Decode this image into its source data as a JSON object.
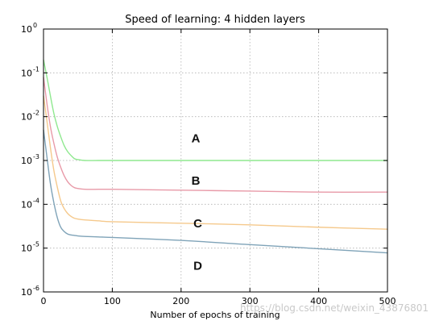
{
  "chart_data": {
    "type": "line",
    "title": "Speed of learning: 4 hidden layers",
    "xlabel": "Number of epochs of training",
    "ylabel": "",
    "xlim": [
      0,
      500
    ],
    "ylim": [
      1e-06,
      1
    ],
    "yscale": "log",
    "grid": true,
    "x_ticks": [
      0,
      100,
      200,
      300,
      400,
      500
    ],
    "y_ticks": [
      {
        "value": 1e-06,
        "base": "10",
        "exp": "-6"
      },
      {
        "value": 1e-05,
        "base": "10",
        "exp": "-5"
      },
      {
        "value": 0.0001,
        "base": "10",
        "exp": "-4"
      },
      {
        "value": 0.001,
        "base": "10",
        "exp": "-3"
      },
      {
        "value": 0.01,
        "base": "10",
        "exp": "-2"
      },
      {
        "value": 0.1,
        "base": "10",
        "exp": "-1"
      },
      {
        "value": 1,
        "base": "10",
        "exp": "0"
      }
    ],
    "series": [
      {
        "color": "#8fe88f",
        "x": [
          0,
          5,
          10,
          15,
          20,
          25,
          30,
          35,
          40,
          45,
          50,
          60,
          80,
          100,
          200,
          300,
          400,
          500
        ],
        "y": [
          0.2,
          0.08,
          0.03,
          0.012,
          0.006,
          0.0035,
          0.0022,
          0.0016,
          0.0013,
          0.0011,
          0.00105,
          0.001,
          0.001,
          0.001,
          0.001,
          0.001,
          0.001,
          0.001
        ]
      },
      {
        "color": "#e89aa8",
        "x": [
          0,
          5,
          10,
          15,
          20,
          25,
          30,
          35,
          40,
          45,
          50,
          60,
          80,
          100,
          200,
          300,
          400,
          500
        ],
        "y": [
          0.08,
          0.02,
          0.006,
          0.0025,
          0.0012,
          0.0007,
          0.00045,
          0.00033,
          0.00027,
          0.00024,
          0.00023,
          0.00022,
          0.00022,
          0.00022,
          0.00021,
          0.0002,
          0.00019,
          0.00019
        ]
      },
      {
        "color": "#f5c98c",
        "x": [
          0,
          5,
          10,
          15,
          20,
          25,
          30,
          35,
          40,
          45,
          50,
          60,
          80,
          100,
          200,
          300,
          400,
          500
        ],
        "y": [
          0.03,
          0.008,
          0.002,
          0.0006,
          0.00025,
          0.00012,
          8e-05,
          6.2e-05,
          5.3e-05,
          4.8e-05,
          4.6e-05,
          4.4e-05,
          4.2e-05,
          4e-05,
          3.7e-05,
          3.4e-05,
          3e-05,
          2.7e-05
        ]
      },
      {
        "color": "#7fa3b8",
        "x": [
          0,
          5,
          10,
          15,
          20,
          25,
          30,
          35,
          40,
          45,
          50,
          60,
          80,
          100,
          200,
          300,
          400,
          500
        ],
        "y": [
          0.005,
          0.0012,
          0.0003,
          0.00011,
          5e-05,
          3e-05,
          2.4e-05,
          2.1e-05,
          2e-05,
          1.95e-05,
          1.9e-05,
          1.85e-05,
          1.8e-05,
          1.75e-05,
          1.5e-05,
          1.2e-05,
          9.7e-06,
          7.8e-06
        ]
      }
    ],
    "annotations": [
      {
        "text": "A",
        "x": 215,
        "y": 0.0026
      },
      {
        "text": "B",
        "x": 215,
        "y": 0.00028
      },
      {
        "text": "C",
        "x": 218,
        "y": 2.95e-05
      },
      {
        "text": "D",
        "x": 218,
        "y": 3.2e-06
      }
    ]
  },
  "watermark": "https://blog.csdn.net/weixin_43876801"
}
